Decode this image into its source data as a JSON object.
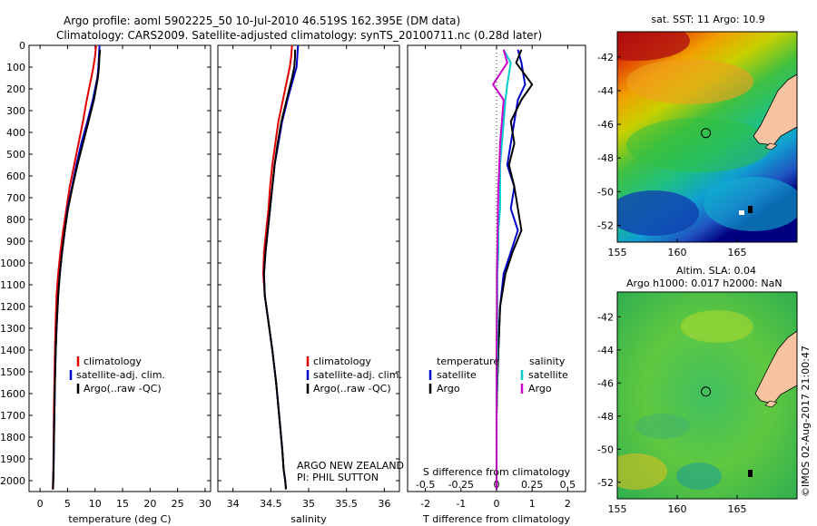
{
  "title": {
    "line1": "Argo profile: aoml 5902225_50 10-Jul-2010 46.519S 162.395E (DM data)",
    "line2": "Climatology: CARS2009. Satellite-adjusted climatology: synTS_20100711.nc (0.28d later)"
  },
  "colors": {
    "climatology": "#e00000",
    "satellite": "#0000cc",
    "argo": "#000000",
    "sat_salinity": "#00cccc",
    "argo_salinity": "#cc00cc"
  },
  "legend_tp": {
    "climatology": "climatology",
    "satellite": "satellite-adj. clim.",
    "argo": "Argo(..raw -QC)"
  },
  "legend_diff": {
    "temperature": "temperature",
    "salinity": "salinity",
    "satellite": "satellite",
    "argo": "Argo"
  },
  "annotation": {
    "line1": "ARGO NEW ZEALAND",
    "line2": "PI: PHIL SUTTON"
  },
  "sst_title": "sat. SST: 11 Argo: 10.9",
  "sla_title": {
    "line1": "Altim. SLA: 0.04",
    "line2": "Argo h1000: 0.017 h2000: NaN"
  },
  "side_label": "©IMOS 02-Aug-2017 21:00:47",
  "chart_data": [
    {
      "type": "line",
      "xlabel": "temperature (deg C)",
      "xlim": [
        -2,
        31
      ],
      "xticks": [
        0,
        5,
        10,
        15,
        20,
        25,
        30
      ],
      "ylim": [
        2050,
        0
      ],
      "yticks": [
        0,
        100,
        200,
        300,
        400,
        500,
        600,
        700,
        800,
        900,
        1000,
        1100,
        1200,
        1300,
        1400,
        1500,
        1600,
        1700,
        1800,
        1900,
        2000
      ],
      "series": [
        {
          "name": "climatology",
          "color": "#e00000",
          "x": [
            10.2,
            10.0,
            9.7,
            9.3,
            8.5,
            7.8,
            7.0,
            6.2,
            5.4,
            4.8,
            4.2,
            3.7,
            3.3,
            3.0,
            2.8,
            2.7,
            2.6,
            2.5,
            2.45,
            2.4,
            2.35,
            2.3
          ],
          "y": [
            0,
            50,
            100,
            150,
            250,
            350,
            450,
            550,
            650,
            750,
            850,
            950,
            1050,
            1150,
            1300,
            1400,
            1550,
            1700,
            1850,
            1950,
            2000,
            2040
          ]
        },
        {
          "name": "satellite-adj. clim.",
          "color": "#0000cc",
          "x": [
            10.8,
            10.7,
            10.6,
            10.4,
            9.6,
            8.6,
            7.5,
            6.6,
            5.8,
            5.0,
            4.5,
            4.0,
            3.6,
            3.3,
            3.0,
            2.85,
            2.7,
            2.6,
            2.5,
            2.45,
            2.4,
            2.35
          ],
          "y": [
            0,
            50,
            100,
            150,
            250,
            350,
            450,
            550,
            650,
            750,
            850,
            950,
            1050,
            1150,
            1300,
            1400,
            1550,
            1700,
            1850,
            1950,
            2000,
            2040
          ]
        },
        {
          "name": "Argo(..raw -QC)",
          "color": "#000000",
          "x": [
            10.9,
            10.8,
            10.7,
            10.5,
            9.8,
            8.8,
            7.8,
            6.8,
            5.9,
            5.1,
            4.5,
            4.0,
            3.6,
            3.3,
            3.0,
            2.85,
            2.7,
            2.6,
            2.5,
            2.45,
            2.4,
            2.35
          ],
          "y": [
            20,
            50,
            100,
            150,
            250,
            350,
            450,
            550,
            650,
            750,
            850,
            950,
            1050,
            1150,
            1300,
            1400,
            1550,
            1700,
            1850,
            1950,
            2000,
            2040
          ]
        }
      ]
    },
    {
      "type": "line",
      "xlabel": "salinity",
      "xlim": [
        33.8,
        36.2
      ],
      "xticks": [
        34,
        34.5,
        35,
        35.5,
        36
      ],
      "xticklabels": [
        "34",
        "34.5",
        "35",
        "35.5",
        "36"
      ],
      "ylim": [
        2050,
        0
      ],
      "yticks": [
        0,
        100,
        200,
        300,
        400,
        500,
        600,
        700,
        800,
        900,
        1000,
        1100,
        1200,
        1300,
        1400,
        1500,
        1600,
        1700,
        1800,
        1900,
        2000
      ],
      "series": [
        {
          "name": "climatology",
          "color": "#e00000",
          "x": [
            34.78,
            34.77,
            34.75,
            34.72,
            34.66,
            34.6,
            34.56,
            34.52,
            34.49,
            34.47,
            34.44,
            34.41,
            34.4,
            34.42,
            34.48,
            34.52,
            34.57,
            34.61,
            34.65,
            34.67,
            34.69,
            34.7
          ],
          "y": [
            0,
            50,
            100,
            150,
            250,
            350,
            450,
            550,
            650,
            750,
            850,
            950,
            1050,
            1150,
            1300,
            1400,
            1550,
            1700,
            1850,
            1950,
            2000,
            2040
          ]
        },
        {
          "name": "satellite-adj. clim.",
          "color": "#0000cc",
          "x": [
            34.86,
            34.85,
            34.84,
            34.8,
            34.72,
            34.65,
            34.6,
            34.55,
            34.52,
            34.49,
            34.46,
            34.43,
            34.41,
            34.42,
            34.48,
            34.52,
            34.57,
            34.61,
            34.65,
            34.67,
            34.69,
            34.7
          ],
          "y": [
            0,
            50,
            100,
            150,
            250,
            350,
            450,
            550,
            650,
            750,
            850,
            950,
            1050,
            1150,
            1300,
            1400,
            1550,
            1700,
            1850,
            1950,
            2000,
            2040
          ]
        },
        {
          "name": "Argo(..raw -QC)",
          "color": "#000000",
          "x": [
            34.82,
            34.82,
            34.81,
            34.78,
            34.71,
            34.64,
            34.59,
            34.55,
            34.52,
            34.49,
            34.46,
            34.43,
            34.41,
            34.42,
            34.48,
            34.52,
            34.57,
            34.61,
            34.65,
            34.67,
            34.69,
            34.7
          ],
          "y": [
            20,
            50,
            100,
            150,
            250,
            350,
            450,
            550,
            650,
            750,
            850,
            950,
            1050,
            1150,
            1300,
            1400,
            1550,
            1700,
            1850,
            1950,
            2000,
            2040
          ]
        }
      ]
    },
    {
      "type": "line",
      "xlabel": "T difference from climatology",
      "xlabel_top": "S difference from climatology",
      "xlim": [
        -2.5,
        2.5
      ],
      "xticks": [
        -2,
        -1,
        0,
        1,
        2
      ],
      "xticklabels": [
        "-2",
        "-1",
        "0",
        "1",
        "2"
      ],
      "xlim_top": [
        -0.625,
        0.625
      ],
      "xticks_top": [
        -0.5,
        -0.25,
        0,
        0.25,
        0.5
      ],
      "xticklabels_top": [
        "-0.5",
        "-0.25",
        "0",
        "0.25",
        "0.5"
      ],
      "ylim": [
        2050,
        0
      ],
      "series": [
        {
          "name": "temperature satellite",
          "color": "#0000cc",
          "x": [
            0.6,
            0.7,
            0.8,
            0.6,
            0.5,
            0.4,
            0.3,
            0.5,
            0.4,
            0.6,
            0.4,
            0.2,
            0.1,
            0.05,
            0.02,
            0.0,
            0.0,
            0.0,
            0.0
          ],
          "y": [
            20,
            80,
            180,
            250,
            350,
            450,
            550,
            650,
            750,
            850,
            950,
            1050,
            1200,
            1400,
            1550,
            1700,
            1850,
            2000,
            2040
          ]
        },
        {
          "name": "temperature Argo",
          "color": "#000000",
          "x": [
            0.7,
            0.55,
            1.0,
            0.7,
            0.4,
            0.5,
            0.35,
            0.5,
            0.6,
            0.7,
            0.45,
            0.25,
            0.1,
            0.05,
            0.02,
            0.0,
            0.0,
            0.0,
            0.0
          ],
          "y": [
            20,
            80,
            180,
            250,
            350,
            450,
            550,
            650,
            750,
            850,
            950,
            1050,
            1200,
            1400,
            1550,
            1700,
            1850,
            2000,
            2040
          ]
        },
        {
          "name": "salinity satellite",
          "color": "#00cccc",
          "x": [
            0.2,
            0.4,
            0.3,
            0.25,
            0.2,
            0.15,
            0.1,
            0.1,
            0.1,
            0.05,
            0.05,
            0.02,
            0.02,
            0.02,
            0.01,
            0.0,
            0.0,
            0.0,
            0.0
          ],
          "y": [
            20,
            80,
            180,
            250,
            350,
            450,
            550,
            650,
            750,
            850,
            950,
            1050,
            1200,
            1400,
            1550,
            1700,
            1850,
            2000,
            2040
          ]
        },
        {
          "name": "salinity Argo",
          "color": "#cc00cc",
          "x": [
            0.2,
            0.3,
            -0.1,
            0.2,
            0.15,
            0.1,
            0.08,
            0.05,
            0.04,
            0.03,
            0.02,
            0.01,
            0.01,
            0.0,
            0.0,
            0.0,
            0.0,
            0.0,
            0.0
          ],
          "y": [
            20,
            80,
            180,
            250,
            350,
            450,
            550,
            650,
            750,
            850,
            950,
            1050,
            1200,
            1400,
            1550,
            1700,
            1850,
            2000,
            2040
          ]
        }
      ]
    },
    {
      "type": "heatmap",
      "title": "sat. SST: 11 Argo: 10.9",
      "xlim": [
        155,
        170
      ],
      "ylim": [
        -53,
        -40.5
      ],
      "xticks": [
        155,
        160,
        165
      ],
      "yticks": [
        -42,
        -44,
        -46,
        -48,
        -50,
        -52
      ],
      "marker": {
        "lon": 162.395,
        "lat": -46.519
      }
    },
    {
      "type": "heatmap",
      "title": "Altim. SLA: 0.04",
      "xlim": [
        155,
        170
      ],
      "ylim": [
        -53,
        -40.5
      ],
      "xticks": [
        155,
        160,
        165
      ],
      "yticks": [
        -42,
        -44,
        -46,
        -48,
        -50,
        -52
      ],
      "marker": {
        "lon": 162.395,
        "lat": -46.519
      }
    }
  ]
}
